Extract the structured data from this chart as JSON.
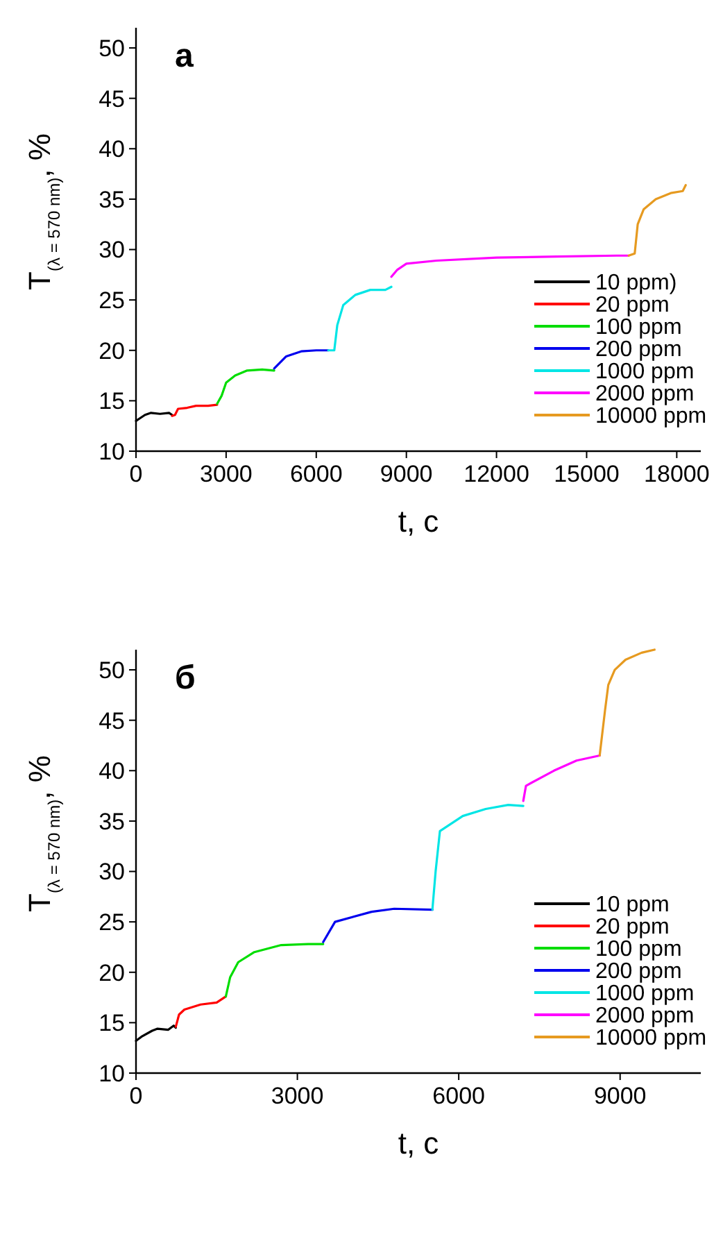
{
  "chart_data": [
    {
      "type": "line",
      "annotations": [
        "а"
      ],
      "xlabel": "t, с",
      "ylabel": "T$_{(λ = 570 nm)}$, %",
      "xlim": [
        0,
        18800
      ],
      "xticks": [
        0,
        3000,
        6000,
        9000,
        12000,
        15000,
        18000
      ],
      "ylim": [
        10,
        52
      ],
      "yticks": [
        10,
        15,
        20,
        25,
        30,
        35,
        40,
        45,
        50
      ],
      "legend": "bottom right",
      "grid": false,
      "series": [
        {
          "name": "10 ppm)",
          "color": "#000000",
          "x": [
            0,
            100,
            300,
            500,
            800,
            1100,
            1200
          ],
          "values": [
            13.0,
            13.2,
            13.6,
            13.8,
            13.7,
            13.8,
            13.6
          ]
        },
        {
          "name": "20 ppm",
          "color": "#ff0000",
          "x": [
            1200,
            1300,
            1400,
            1700,
            2000,
            2400,
            2700
          ],
          "values": [
            13.5,
            13.6,
            14.2,
            14.3,
            14.5,
            14.5,
            14.6
          ]
        },
        {
          "name": "100 ppm",
          "color": "#00dd00",
          "x": [
            2700,
            2850,
            3000,
            3300,
            3700,
            4200,
            4600
          ],
          "values": [
            14.7,
            15.5,
            16.8,
            17.5,
            18.0,
            18.1,
            18.0
          ]
        },
        {
          "name": "200 ppm",
          "color": "#0000ee",
          "x": [
            4600,
            4800,
            5000,
            5500,
            6000,
            6400
          ],
          "values": [
            18.2,
            18.8,
            19.4,
            19.9,
            20.0,
            20.0
          ]
        },
        {
          "name": "1000 ppm",
          "color": "#00e5e5",
          "x": [
            6400,
            6600,
            6700,
            6900,
            7300,
            7800,
            8300,
            8500
          ],
          "values": [
            20.0,
            20.0,
            22.5,
            24.5,
            25.5,
            26.0,
            26.0,
            26.3
          ]
        },
        {
          "name": "2000 ppm",
          "color": "#ff00ff",
          "x": [
            8500,
            8700,
            9000,
            10000,
            12000,
            14000,
            16000,
            16400
          ],
          "values": [
            27.3,
            28.0,
            28.6,
            28.9,
            29.2,
            29.3,
            29.4,
            29.4
          ]
        },
        {
          "name": "10000 ppm",
          "color": "#e69a20",
          "x": [
            16400,
            16600,
            16700,
            16900,
            17300,
            17800,
            18200,
            18300
          ],
          "values": [
            29.4,
            29.6,
            32.5,
            34.0,
            35.0,
            35.6,
            35.8,
            36.4
          ]
        }
      ]
    },
    {
      "type": "line",
      "annotations": [
        "б"
      ],
      "xlabel": "t, с",
      "ylabel": "T$_{(λ = 570 nm)}$, %",
      "xlim": [
        0,
        10500
      ],
      "xticks": [
        0,
        3000,
        6000,
        9000
      ],
      "ylim": [
        10,
        52
      ],
      "yticks": [
        10,
        15,
        20,
        25,
        30,
        35,
        40,
        45,
        50
      ],
      "legend": "bottom right",
      "grid": false,
      "series": [
        {
          "name": "10 ppm",
          "color": "#000000",
          "x": [
            0,
            100,
            300,
            400,
            600,
            700,
            740
          ],
          "values": [
            13.2,
            13.6,
            14.2,
            14.4,
            14.3,
            14.7,
            14.5
          ]
        },
        {
          "name": "20 ppm",
          "color": "#ff0000",
          "x": [
            740,
            800,
            900,
            1200,
            1500,
            1670
          ],
          "values": [
            14.6,
            15.8,
            16.3,
            16.8,
            17.0,
            17.6
          ]
        },
        {
          "name": "100 ppm",
          "color": "#00dd00",
          "x": [
            1670,
            1750,
            1900,
            2200,
            2700,
            3200,
            3480
          ],
          "values": [
            17.6,
            19.5,
            21.0,
            22.0,
            22.7,
            22.8,
            22.8
          ]
        },
        {
          "name": "200 ppm",
          "color": "#0000ee",
          "x": [
            3480,
            3700,
            4380,
            4800,
            5510
          ],
          "values": [
            23.0,
            25.0,
            26.0,
            26.3,
            26.2
          ]
        },
        {
          "name": "1000 ppm",
          "color": "#00e5e5",
          "x": [
            5510,
            5570,
            5650,
            6075,
            6500,
            6920,
            7200
          ],
          "values": [
            26.2,
            30.0,
            34.0,
            35.5,
            36.2,
            36.6,
            36.5
          ]
        },
        {
          "name": "2000 ppm",
          "color": "#ff00ff",
          "x": [
            7200,
            7250,
            7770,
            8190,
            8620
          ],
          "values": [
            37.0,
            38.5,
            40.0,
            41.0,
            41.5
          ]
        },
        {
          "name": "10000 ppm",
          "color": "#e69a20",
          "x": [
            8620,
            8720,
            8780,
            8900,
            9100,
            9400,
            9640
          ],
          "values": [
            41.5,
            46.0,
            48.5,
            50.0,
            51.0,
            51.7,
            52.0
          ]
        }
      ]
    }
  ]
}
